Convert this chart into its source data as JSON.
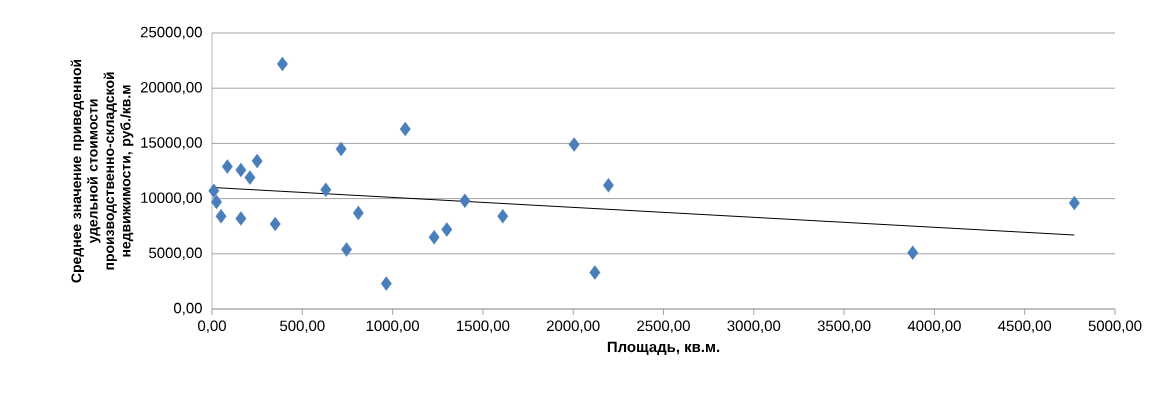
{
  "chart_data": {
    "type": "scatter",
    "xlabel": "Площадь, кв.м.",
    "ylabel": "Среднее значение приведенной удельной стоимости производственно-складской недвижимости, руб./кв.м",
    "xlim": [
      0,
      5000
    ],
    "ylim": [
      0,
      25000
    ],
    "xticks": [
      {
        "value": 0,
        "label": "0,00"
      },
      {
        "value": 500,
        "label": "500,00"
      },
      {
        "value": 1000,
        "label": "1000,00"
      },
      {
        "value": 1500,
        "label": "1500,00"
      },
      {
        "value": 2000,
        "label": "2000,00"
      },
      {
        "value": 2500,
        "label": "2500,00"
      },
      {
        "value": 3000,
        "label": "3000,00"
      },
      {
        "value": 3500,
        "label": "3500,00"
      },
      {
        "value": 4000,
        "label": "4000,00"
      },
      {
        "value": 4500,
        "label": "4500,00"
      },
      {
        "value": 5000,
        "label": "5000,00"
      }
    ],
    "yticks": [
      {
        "value": 0,
        "label": "0,00"
      },
      {
        "value": 5000,
        "label": "5000,00"
      },
      {
        "value": 10000,
        "label": "10000,00"
      },
      {
        "value": 15000,
        "label": "15000,00"
      },
      {
        "value": 20000,
        "label": "20000,00"
      },
      {
        "value": 25000,
        "label": "25000,00"
      }
    ],
    "grid": "y",
    "series": [
      {
        "color": "#4a7ebb",
        "marker": "diamond",
        "x": [
          10,
          25,
          50,
          85,
          160,
          160,
          210,
          250,
          350,
          390,
          630,
          715,
          745,
          810,
          965,
          1070,
          1230,
          1300,
          1400,
          1610,
          2005,
          2120,
          2195,
          3880,
          4775
        ],
        "values": [
          10700,
          9700,
          8400,
          12900,
          8200,
          12600,
          11900,
          13400,
          7700,
          22200,
          10800,
          14500,
          5400,
          8700,
          2300,
          16300,
          6500,
          7200,
          9800,
          8400,
          14900,
          3300,
          11200,
          5100,
          9600
        ]
      },
      {
        "type": "line",
        "color": "#000000",
        "marker": "none",
        "x": [
          10,
          4775
        ],
        "values": [
          11000,
          6700
        ]
      }
    ]
  }
}
